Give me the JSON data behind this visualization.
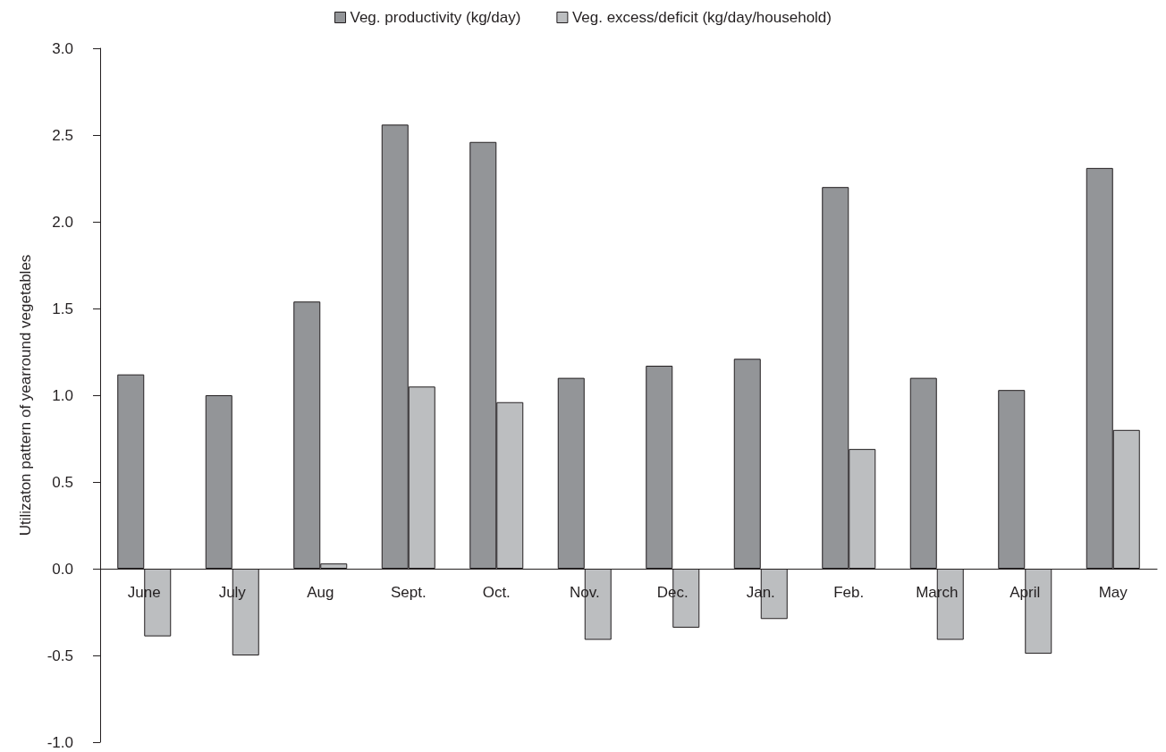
{
  "chart_data": {
    "type": "bar",
    "ylabel": "Utilizaton pattern of yearround vegetables",
    "categories": [
      "June",
      "July",
      "Aug",
      "Sept.",
      "Oct.",
      "Nov.",
      "Dec.",
      "Jan.",
      "Feb.",
      "March",
      "April",
      "May"
    ],
    "series": [
      {
        "name": "Veg. productivity (kg/day)",
        "color": "#939598",
        "values": [
          1.12,
          1.0,
          1.54,
          2.56,
          2.46,
          1.1,
          1.17,
          1.21,
          2.2,
          1.1,
          1.03,
          2.31
        ]
      },
      {
        "name": "Veg. excess/deficit (kg/day/household)",
        "color": "#bcbec0",
        "values": [
          -0.39,
          -0.5,
          0.03,
          1.05,
          0.96,
          -0.41,
          -0.34,
          -0.29,
          0.69,
          -0.41,
          -0.49,
          0.8
        ]
      }
    ],
    "ylim": [
      -1.0,
      3.0
    ],
    "yticks": [
      {
        "value": -1.0,
        "label": "-1.0"
      },
      {
        "value": -0.5,
        "label": "-0.5"
      },
      {
        "value": 0,
        "label": "0.0"
      },
      {
        "value": 0.5,
        "label": "0.5"
      },
      {
        "value": 1.0,
        "label": "1.0"
      },
      {
        "value": 1.5,
        "label": "1.5"
      },
      {
        "value": 2.0,
        "label": "2.0"
      },
      {
        "value": 2.5,
        "label": "2.5"
      },
      {
        "value": 3.0,
        "label": "3.0"
      }
    ],
    "legend": "top"
  }
}
